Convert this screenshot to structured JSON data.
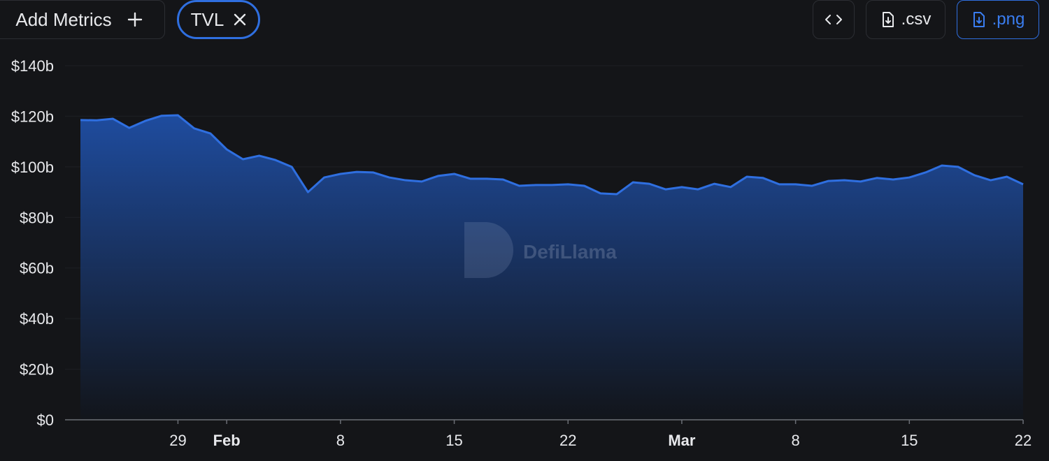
{
  "toolbar": {
    "add_metrics": "Add Metrics",
    "metric": "TVL",
    "csv": ".csv",
    "png": ".png"
  },
  "watermark": "DefiLlama",
  "chart_data": {
    "type": "area",
    "x": [
      23,
      24,
      25,
      26,
      27,
      28,
      29,
      30,
      31,
      32,
      33,
      34,
      35,
      36,
      37,
      38,
      39,
      40,
      41,
      42,
      43,
      44,
      45,
      46,
      47,
      48,
      49,
      50,
      51,
      52,
      53,
      54,
      55,
      56,
      57,
      58,
      59,
      60,
      61,
      62,
      63,
      64,
      65,
      66,
      67,
      68,
      69,
      70,
      71,
      72,
      73,
      74,
      75,
      76,
      77,
      78,
      79,
      80,
      81
    ],
    "series": [
      {
        "name": "TVL",
        "color": "#2f6fe0",
        "values": [
          118.5,
          118.4,
          119,
          115.4,
          118.2,
          120.2,
          120.4,
          115.2,
          113.2,
          106.9,
          103,
          104.4,
          102.7,
          100,
          90,
          95.8,
          97.2,
          98,
          97.8,
          95.8,
          94.7,
          94.2,
          96.4,
          97.2,
          95.3,
          95.3,
          95,
          92.5,
          92.8,
          92.8,
          93.1,
          92.5,
          89.5,
          89.2,
          93.9,
          93.3,
          91.1,
          92,
          91.1,
          93.3,
          92,
          96.1,
          95.6,
          93.1,
          93.1,
          92.5,
          94.4,
          94.7,
          94.2,
          95.6,
          95,
          95.8,
          97.8,
          100.5,
          100,
          96.7,
          94.7,
          96.1,
          93.1
        ]
      }
    ],
    "xlim": [
      23,
      81
    ],
    "xticks": [
      {
        "value": 29,
        "label": "29"
      },
      {
        "value": 32,
        "label": "Feb"
      },
      {
        "value": 39,
        "label": "8"
      },
      {
        "value": 46,
        "label": "15"
      },
      {
        "value": 53,
        "label": "22"
      },
      {
        "value": 60,
        "label": "Mar"
      },
      {
        "value": 67,
        "label": "8"
      },
      {
        "value": 74,
        "label": "15"
      },
      {
        "value": 81,
        "label": "22"
      }
    ],
    "ylim": [
      0,
      140
    ],
    "yticks": [
      {
        "value": 0,
        "label": "$0"
      },
      {
        "value": 20,
        "label": "$20b"
      },
      {
        "value": 40,
        "label": "$40b"
      },
      {
        "value": 60,
        "label": "$60b"
      },
      {
        "value": 80,
        "label": "$80b"
      },
      {
        "value": 100,
        "label": "$100b"
      },
      {
        "value": 120,
        "label": "$120b"
      },
      {
        "value": 140,
        "label": "$140b"
      }
    ],
    "grid": true
  }
}
